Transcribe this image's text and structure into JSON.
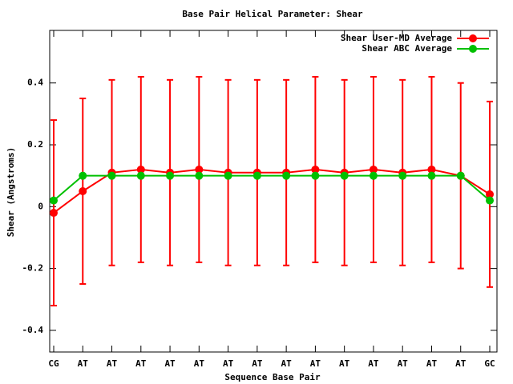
{
  "chart_data": {
    "type": "line",
    "title": "Base Pair Helical Parameter: Shear",
    "x_label": "Sequence Base Pair",
    "y_label": "Shear (Angstroms)",
    "categories": [
      "CG",
      "AT",
      "AT",
      "AT",
      "AT",
      "AT",
      "AT",
      "AT",
      "AT",
      "AT",
      "AT",
      "AT",
      "AT",
      "AT",
      "AT",
      "GC"
    ],
    "series": [
      {
        "name": "Shear User-MD Average",
        "color": "#ff0000",
        "values": [
          -0.02,
          0.05,
          0.11,
          0.12,
          0.11,
          0.12,
          0.11,
          0.11,
          0.11,
          0.12,
          0.11,
          0.12,
          0.11,
          0.12,
          0.1,
          0.04
        ],
        "errors": [
          0.3,
          0.3,
          0.3,
          0.3,
          0.3,
          0.3,
          0.3,
          0.3,
          0.3,
          0.3,
          0.3,
          0.3,
          0.3,
          0.3,
          0.3,
          0.3
        ]
      },
      {
        "name": "Shear ABC Average",
        "color": "#00c000",
        "values": [
          0.02,
          0.1,
          0.1,
          0.1,
          0.1,
          0.1,
          0.1,
          0.1,
          0.1,
          0.1,
          0.1,
          0.1,
          0.1,
          0.1,
          0.1,
          0.02
        ]
      }
    ],
    "ylim": [
      -0.47,
      0.57
    ],
    "yticks": [
      -0.4,
      -0.2,
      0,
      0.2,
      0.4
    ],
    "legend": "top-right"
  }
}
